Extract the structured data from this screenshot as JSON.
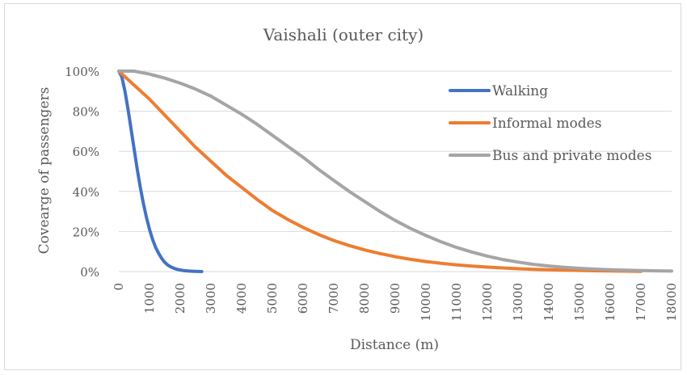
{
  "chart_data": {
    "type": "line",
    "title": "Vaishali (outer city)",
    "xlabel": "Distance (m)",
    "ylabel": "Covearge of passengers",
    "xlim": [
      0,
      18000
    ],
    "ylim": [
      0,
      100
    ],
    "x_ticks": [
      "0",
      "1000",
      "2000",
      "3000",
      "4000",
      "5000",
      "6000",
      "7000",
      "8000",
      "9000",
      "10000",
      "11000",
      "12000",
      "13000",
      "14000",
      "15000",
      "16000",
      "17000",
      "18000"
    ],
    "y_ticks": [
      "0%",
      "20%",
      "40%",
      "60%",
      "80%",
      "100%"
    ],
    "grid": "horizontal",
    "legend_position": "right",
    "series": [
      {
        "name": "Walking",
        "color": "#4472c4",
        "x": [
          0,
          100,
          200,
          300,
          400,
          500,
          600,
          700,
          800,
          900,
          1000,
          1100,
          1200,
          1300,
          1400,
          1500,
          1600,
          1700,
          1800,
          1900,
          2000,
          2100,
          2200,
          2300,
          2400,
          2500,
          2600,
          2700
        ],
        "y": [
          100,
          97,
          90,
          81,
          71,
          61,
          51,
          42,
          34,
          27,
          21,
          16,
          12,
          9,
          6.5,
          4.5,
          3.2,
          2.3,
          1.6,
          1.1,
          0.8,
          0.5,
          0.35,
          0.25,
          0.15,
          0.1,
          0.05,
          0
        ]
      },
      {
        "name": "Informal modes",
        "color": "#ed7d31",
        "x": [
          0,
          500,
          1000,
          1500,
          2000,
          2500,
          3000,
          3500,
          4000,
          4500,
          5000,
          5500,
          6000,
          6500,
          7000,
          7500,
          8000,
          8500,
          9000,
          9500,
          10000,
          10500,
          11000,
          11500,
          12000,
          12500,
          13000,
          13500,
          14000,
          14500,
          15000,
          15500,
          16000,
          16500,
          17000
        ],
        "y": [
          100,
          93,
          86,
          78,
          70,
          62,
          55,
          48,
          42,
          36,
          30.5,
          26,
          22,
          18.5,
          15.5,
          13,
          10.8,
          9,
          7.4,
          6.1,
          5,
          4.1,
          3.3,
          2.7,
          2.2,
          1.8,
          1.4,
          1.1,
          0.9,
          0.7,
          0.55,
          0.4,
          0.3,
          0.2,
          0.1
        ]
      },
      {
        "name": "Bus and private modes",
        "color": "#a5a5a5",
        "x": [
          0,
          500,
          1000,
          1500,
          2000,
          2500,
          3000,
          3500,
          4000,
          4500,
          5000,
          5500,
          6000,
          6500,
          7000,
          7500,
          8000,
          8500,
          9000,
          9500,
          10000,
          10500,
          11000,
          11500,
          12000,
          12500,
          13000,
          13500,
          14000,
          14500,
          15000,
          15500,
          16000,
          16500,
          17000,
          17500,
          18000
        ],
        "y": [
          100,
          100,
          98.5,
          96.5,
          94,
          91,
          87.5,
          83,
          78.5,
          73.5,
          68,
          62.5,
          57,
          51,
          45.5,
          40,
          35,
          30,
          25.5,
          21.5,
          18,
          14.8,
          12,
          9.7,
          7.7,
          6,
          4.7,
          3.6,
          2.8,
          2.1,
          1.6,
          1.2,
          0.9,
          0.7,
          0.5,
          0.35,
          0.25
        ]
      }
    ]
  }
}
